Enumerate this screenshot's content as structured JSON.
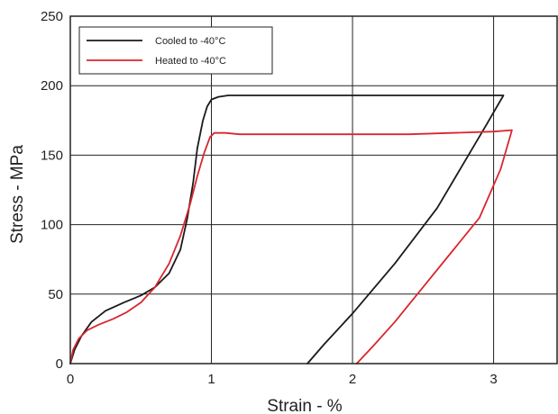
{
  "chart_data": {
    "type": "line",
    "title": "",
    "xlabel": "Strain - %",
    "ylabel": "Stress - MPa",
    "xlim": [
      0,
      3.45
    ],
    "ylim": [
      0,
      250
    ],
    "xticks": [
      "0",
      "1",
      "2",
      "3"
    ],
    "yticks": [
      "0",
      "50",
      "100",
      "150",
      "200",
      "250"
    ],
    "grid": true,
    "legend_position": "top-left",
    "series": [
      {
        "name": "Cooled to -40°C",
        "color": "#1a1a1a",
        "x": [
          0,
          0.03,
          0.08,
          0.15,
          0.25,
          0.38,
          0.5,
          0.6,
          0.7,
          0.78,
          0.83,
          0.87,
          0.9,
          0.94,
          0.97,
          1.0,
          1.05,
          1.12,
          1.2,
          1.3,
          1.5,
          1.8,
          2.1,
          2.4,
          2.7,
          2.95,
          3.07,
          2.95,
          2.6,
          2.3,
          2.0,
          1.8,
          1.68
        ],
        "y": [
          0,
          10,
          20,
          30,
          38,
          44,
          49,
          55,
          65,
          82,
          105,
          130,
          155,
          175,
          185,
          190,
          192,
          193,
          193,
          193,
          193,
          193,
          193,
          193,
          193,
          193,
          193,
          172,
          112,
          72,
          36,
          14,
          0
        ]
      },
      {
        "name": "Heated to -40°C",
        "color": "#d9262e",
        "x": [
          0,
          0.02,
          0.06,
          0.12,
          0.2,
          0.3,
          0.4,
          0.5,
          0.6,
          0.7,
          0.78,
          0.85,
          0.9,
          0.95,
          0.99,
          1.02,
          1.1,
          1.2,
          1.3,
          1.5,
          1.8,
          2.1,
          2.4,
          2.7,
          3.0,
          3.13,
          3.05,
          2.9,
          2.7,
          2.5,
          2.3,
          2.15,
          2.03
        ],
        "y": [
          0,
          10,
          18,
          24,
          28,
          32,
          37,
          44,
          55,
          72,
          92,
          115,
          135,
          152,
          163,
          166,
          166,
          165,
          165,
          165,
          165,
          165,
          165,
          166,
          167,
          168,
          140,
          105,
          80,
          55,
          30,
          13,
          0
        ]
      }
    ]
  }
}
